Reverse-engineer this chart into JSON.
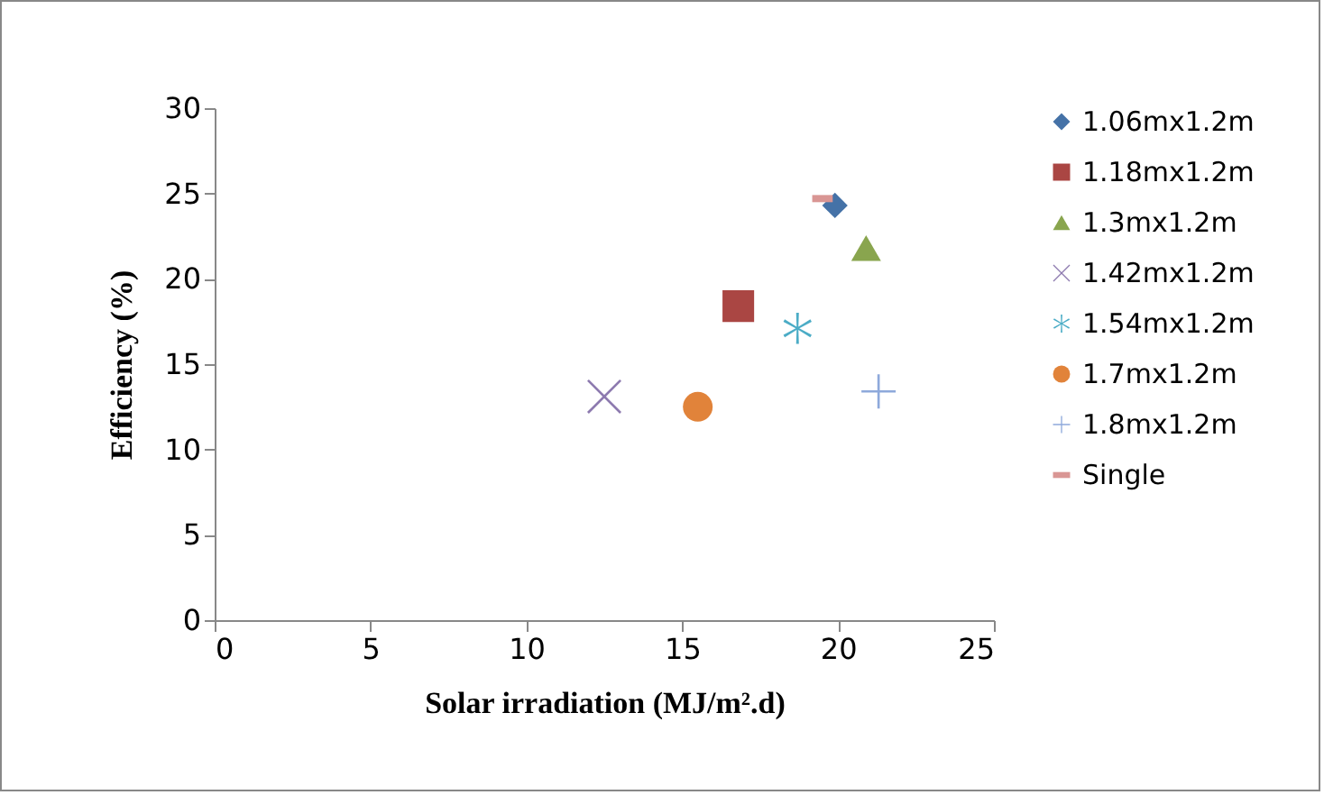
{
  "chart_data": {
    "type": "scatter",
    "xlabel": "Solar irradiation (MJ/m².d)",
    "ylabel": "Efficiency (%)",
    "xlim": [
      0,
      25
    ],
    "xticks": [
      0,
      5,
      10,
      15,
      20,
      25
    ],
    "ylim": [
      0,
      30
    ],
    "yticks": [
      0,
      5,
      10,
      15,
      20,
      25,
      30
    ],
    "legend": "right",
    "series": [
      {
        "name": "1.06mx1.2m",
        "color": "#4572a7",
        "marker": "diamond",
        "x": [
          19.9
        ],
        "values": [
          24.3
        ]
      },
      {
        "name": "1.18mx1.2m",
        "color": "#aa4643",
        "marker": "square",
        "x": [
          16.8
        ],
        "values": [
          18.4
        ]
      },
      {
        "name": "1.3mx1.2m",
        "color": "#89a54e",
        "marker": "triangle",
        "x": [
          20.9
        ],
        "values": [
          21.8
        ]
      },
      {
        "name": "1.42mx1.2m",
        "color": "#8d7aaf",
        "marker": "x",
        "x": [
          12.5
        ],
        "values": [
          13.1
        ]
      },
      {
        "name": "1.54mx1.2m",
        "color": "#4bacc6",
        "marker": "star",
        "x": [
          18.7
        ],
        "values": [
          17.1
        ]
      },
      {
        "name": "1.7mx1.2m",
        "color": "#e1833a",
        "marker": "circle",
        "x": [
          15.5
        ],
        "values": [
          12.5
        ]
      },
      {
        "name": "1.8mx1.2m",
        "color": "#8ea9db",
        "marker": "cross",
        "x": [
          21.3
        ],
        "values": [
          13.4
        ]
      },
      {
        "name": "Single",
        "color": "#d99694",
        "x": [
          19.5
        ],
        "values": [
          24.7
        ]
      }
    ]
  }
}
